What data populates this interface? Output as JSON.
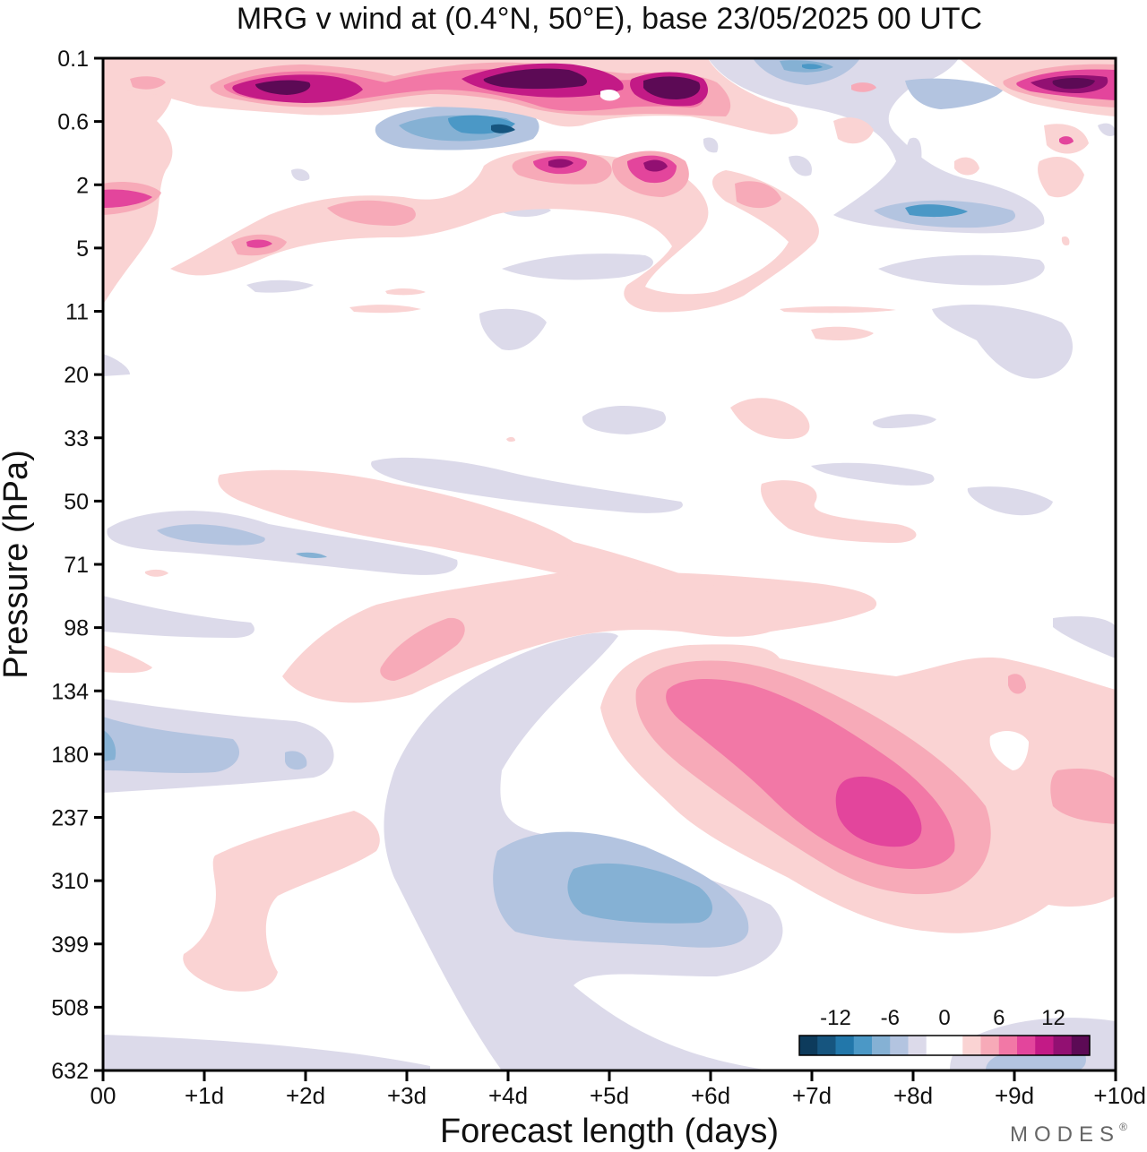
{
  "title": "MRG v wind at (0.4°N, 50°E),  base 23/05/2025  00 UTC",
  "watermark": "MODES",
  "watermark_mark": "®",
  "chart_data": {
    "type": "heatmap",
    "subtype": "filled-contour",
    "title": "MRG v wind at (0.4°N, 50°E),  base 23/05/2025  00 UTC",
    "xlabel": "Forecast length (days)",
    "ylabel": "Pressure (hPa)",
    "x_ticks": [
      "00",
      "+1d",
      "+2d",
      "+3d",
      "+4d",
      "+5d",
      "+6d",
      "+7d",
      "+8d",
      "+9d",
      "+10d"
    ],
    "y_ticks": [
      "0.1",
      "0.6",
      "2",
      "5",
      "11",
      "20",
      "33",
      "50",
      "71",
      "98",
      "134",
      "180",
      "237",
      "310",
      "399",
      "508",
      "632"
    ],
    "xlim": [
      0,
      10
    ],
    "ylim": [
      0.1,
      632
    ],
    "y_scale": "log (pressure levels, decreasing upward)",
    "colorbar": {
      "tick_labels": [
        "-12",
        "-6",
        "0",
        "6",
        "12"
      ],
      "placement": "bottom-right",
      "colors": [
        "#0d3b5c",
        "#16557f",
        "#2277aa",
        "#4b98c6",
        "#85b1d4",
        "#b3c4e0",
        "#dcdaea",
        "#ffffff",
        "#ffffff",
        "#fad3d3",
        "#f7aab8",
        "#f278a6",
        "#e3459c",
        "#c31a86",
        "#921072",
        "#5c0a55"
      ]
    },
    "features": [
      {
        "sign": "positive",
        "x": [
          1.3,
          2.8
        ],
        "y": [
          0.15,
          0.4
        ],
        "peak": 14
      },
      {
        "sign": "positive",
        "x": [
          3.5,
          5.0
        ],
        "y": [
          0.15,
          0.5
        ],
        "peak": 14
      },
      {
        "sign": "positive",
        "x": [
          5.1,
          6.1
        ],
        "y": [
          0.2,
          0.5
        ],
        "peak": 14
      },
      {
        "sign": "positive",
        "x": [
          9.0,
          10.0
        ],
        "y": [
          0.15,
          0.4
        ],
        "peak": 14
      },
      {
        "sign": "negative",
        "x": [
          2.8,
          4.7
        ],
        "y": [
          0.5,
          1.5
        ],
        "peak": -12
      },
      {
        "sign": "positive",
        "x": [
          4.0,
          5.6
        ],
        "y": [
          1.0,
          2.5
        ],
        "peak": 10
      },
      {
        "sign": "negative",
        "x": [
          7.5,
          8.5
        ],
        "y": [
          2.5,
          4.0
        ],
        "peak": -8
      },
      {
        "sign": "positive",
        "x": [
          5.0,
          8.6
        ],
        "y": [
          130,
          310
        ],
        "peak": 10
      },
      {
        "sign": "negative",
        "x": [
          4.0,
          6.4
        ],
        "y": [
          260,
          420
        ],
        "peak": -8
      },
      {
        "sign": "negative",
        "x": [
          0.0,
          1.6
        ],
        "y": [
          150,
          220
        ],
        "peak": -5
      }
    ]
  }
}
